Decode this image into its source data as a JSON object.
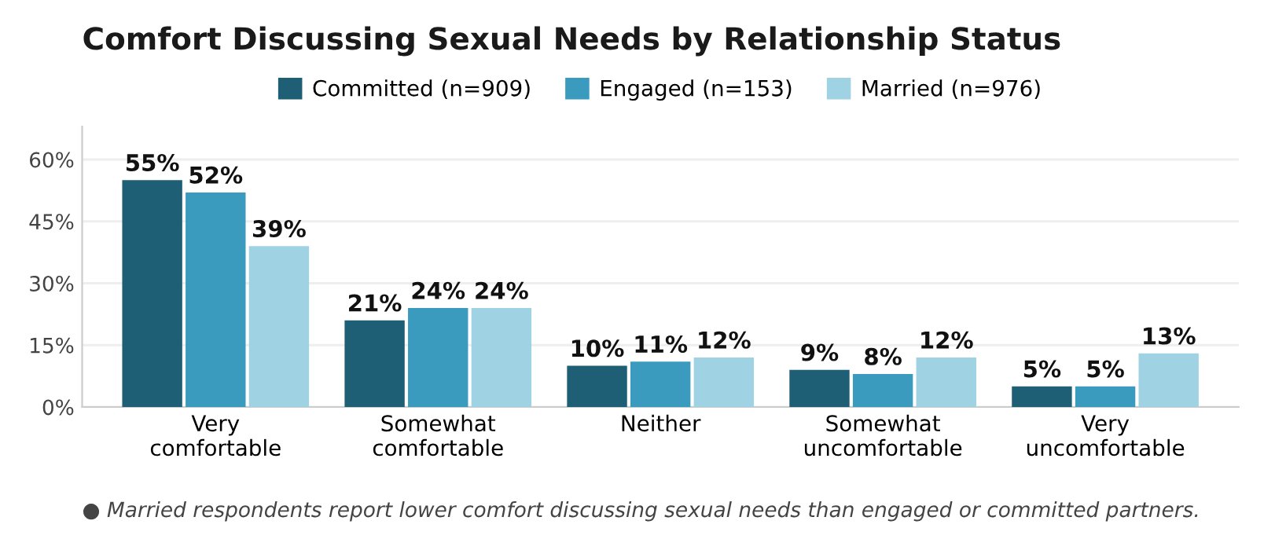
{
  "chart_data": {
    "type": "bar",
    "title": "Comfort Discussing Sexual Needs by Relationship Status",
    "categories": [
      "Very\ncomfortable",
      "Somewhat\ncomfortable",
      "Neither",
      "Somewhat\nuncomfortable",
      "Very\nuncomfortable"
    ],
    "series": [
      {
        "name": "Committed (n=909)",
        "color": "#1f5f75",
        "values": [
          55,
          21,
          10,
          9,
          5
        ],
        "value_labels": [
          "55%",
          "21%",
          "10%",
          "9%",
          "5%"
        ]
      },
      {
        "name": "Engaged (n=153)",
        "color": "#3a9bbf",
        "values": [
          52,
          24,
          11,
          8,
          5
        ],
        "value_labels": [
          "52%",
          "24%",
          "11%",
          "8%",
          "5%"
        ]
      },
      {
        "name": "Married (n=976)",
        "color": "#9fd3e3",
        "values": [
          39,
          24,
          12,
          12,
          13
        ],
        "value_labels": [
          "39%",
          "24%",
          "12%",
          "12%",
          "13%"
        ]
      }
    ],
    "ylim": [
      0,
      68
    ],
    "yticks": [
      {
        "value": 0,
        "label": "0%"
      },
      {
        "value": 15,
        "label": "15%"
      },
      {
        "value": 30,
        "label": "30%"
      },
      {
        "value": 45,
        "label": "45%"
      },
      {
        "value": 60,
        "label": "60%"
      }
    ],
    "grid": "y",
    "legend": "top",
    "annotations": [
      "● Married respondents report lower comfort discussing sexual needs than engaged or committed partners."
    ]
  }
}
